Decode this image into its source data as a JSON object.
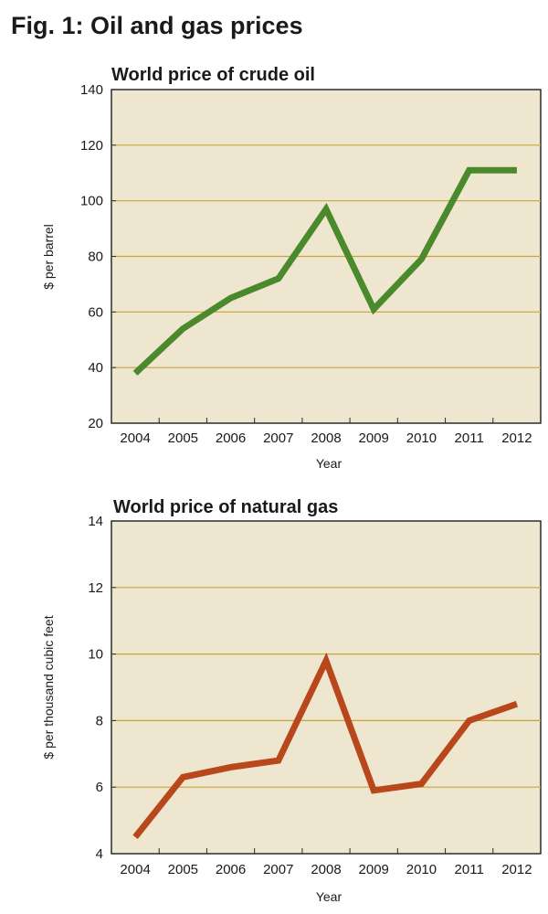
{
  "figure_title": "Fig. 1: Oil and gas prices",
  "colors": {
    "plot_background": "#efe6cf",
    "gridline": "#c8a33a",
    "axis": "#2b2b2b",
    "oil_line": "#4a8a2c",
    "gas_line": "#b8471c"
  },
  "chart_data": [
    {
      "type": "line",
      "title": "World price of crude oil",
      "xlabel": "Year",
      "ylabel": "$ per barrel",
      "ylim": [
        20,
        140
      ],
      "yticks": [
        20,
        40,
        60,
        80,
        100,
        120,
        140
      ],
      "categories": [
        "2004",
        "2005",
        "2006",
        "2007",
        "2008",
        "2009",
        "2010",
        "2011",
        "2012"
      ],
      "series": [
        {
          "name": "Crude oil",
          "values": [
            38,
            54,
            65,
            72,
            97,
            61,
            79,
            111,
            111
          ]
        }
      ],
      "grid": true
    },
    {
      "type": "line",
      "title": "World price of natural gas",
      "xlabel": "Year",
      "ylabel": "$ per thousand cubic feet",
      "ylim": [
        4,
        14
      ],
      "yticks": [
        4,
        6,
        8,
        10,
        12,
        14
      ],
      "categories": [
        "2004",
        "2005",
        "2006",
        "2007",
        "2008",
        "2009",
        "2010",
        "2011",
        "2012"
      ],
      "series": [
        {
          "name": "Natural gas",
          "values": [
            4.5,
            6.3,
            6.6,
            6.8,
            9.8,
            5.9,
            6.1,
            8.0,
            8.5
          ]
        }
      ],
      "grid": true
    }
  ]
}
